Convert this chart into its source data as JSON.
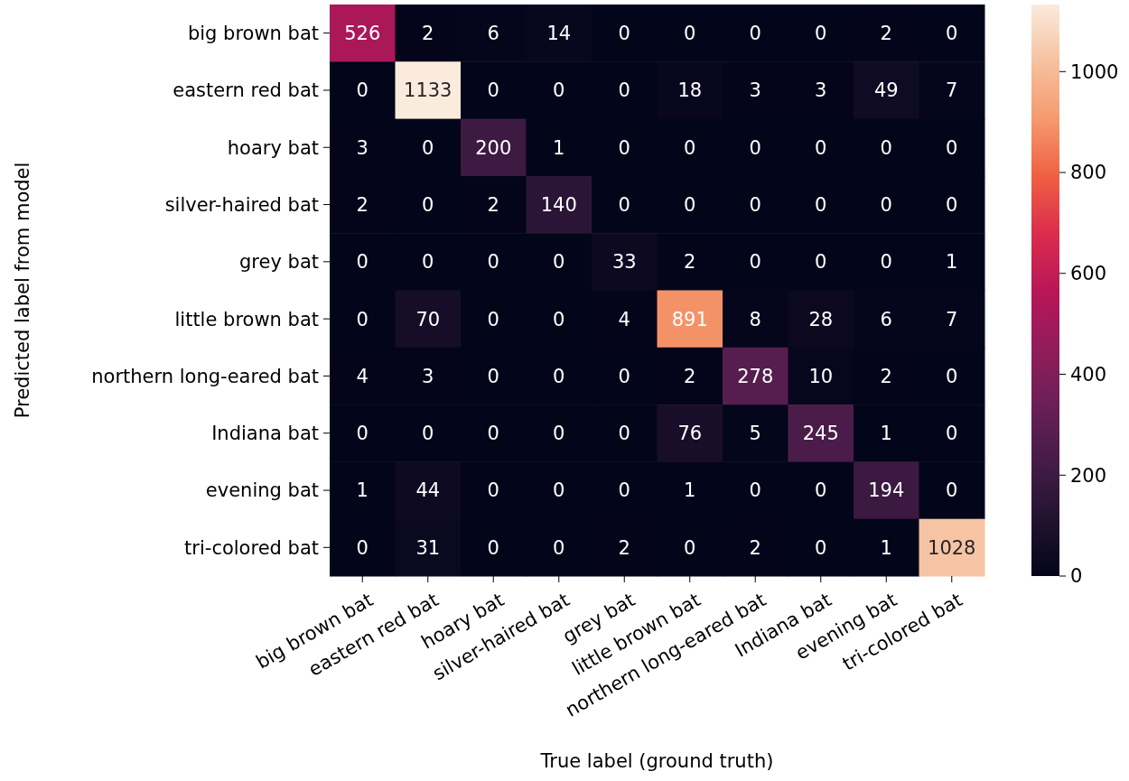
{
  "chart_data": {
    "type": "heatmap",
    "xlabel": "True label (ground truth)",
    "ylabel": "Predicted label from model",
    "categories": [
      "big brown bat",
      "eastern red bat",
      "hoary bat",
      "silver-haired bat",
      "grey bat",
      "little brown bat",
      "northern long-eared bat",
      "Indiana bat",
      "evening bat",
      "tri-colored bat"
    ],
    "y_categories": [
      "big brown bat",
      "eastern red bat",
      "hoary bat",
      "silver-haired bat",
      "grey bat",
      "little brown bat",
      "northern long-eared bat",
      "Indiana bat",
      "evening bat",
      "tri-colored bat"
    ],
    "cells": [
      [
        526,
        2,
        6,
        14,
        0,
        0,
        0,
        0,
        2,
        0
      ],
      [
        0,
        1133,
        0,
        0,
        0,
        18,
        3,
        3,
        49,
        7
      ],
      [
        3,
        0,
        200,
        1,
        0,
        0,
        0,
        0,
        0,
        0
      ],
      [
        2,
        0,
        2,
        140,
        0,
        0,
        0,
        0,
        0,
        0
      ],
      [
        0,
        0,
        0,
        0,
        33,
        2,
        0,
        0,
        0,
        1
      ],
      [
        0,
        70,
        0,
        0,
        4,
        891,
        8,
        28,
        6,
        7
      ],
      [
        4,
        3,
        0,
        0,
        0,
        2,
        278,
        10,
        2,
        0
      ],
      [
        0,
        0,
        0,
        0,
        0,
        76,
        5,
        245,
        1,
        0
      ],
      [
        1,
        44,
        0,
        0,
        0,
        1,
        0,
        0,
        194,
        0
      ],
      [
        0,
        31,
        0,
        0,
        2,
        0,
        2,
        0,
        1,
        1028
      ]
    ],
    "data_labels": true,
    "clim": [
      0,
      1133
    ],
    "cticks": [
      0,
      200,
      400,
      600,
      800,
      1000
    ]
  }
}
